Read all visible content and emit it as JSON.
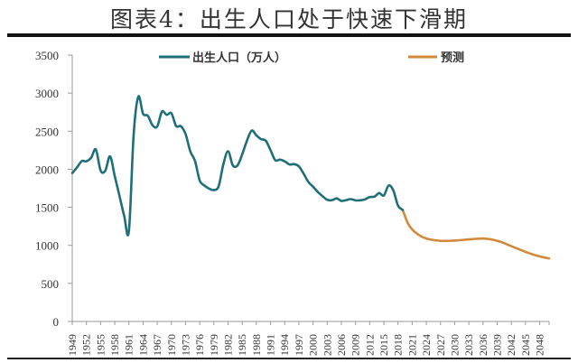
{
  "header": {
    "title": "图表4：出生人口处于快速下滑期"
  },
  "legend": {
    "actual_label": "出生人口（万人）",
    "forecast_label": "预测"
  },
  "colors": {
    "actual": "#1f6f78",
    "forecast": "#d08a3a",
    "axis": "#999999",
    "text": "#333333"
  },
  "chart_data": {
    "type": "line",
    "title": "图表4：出生人口处于快速下滑期",
    "xlabel": "",
    "ylabel": "",
    "ylim": [
      0,
      3500
    ],
    "yticks": [
      0,
      500,
      1000,
      1500,
      2000,
      2500,
      3000,
      3500
    ],
    "xlim": [
      1949,
      2050
    ],
    "xtick_labels": [
      "1949",
      "1952",
      "1955",
      "1958",
      "1961",
      "1964",
      "1967",
      "1970",
      "1973",
      "1976",
      "1979",
      "1982",
      "1985",
      "1988",
      "1991",
      "1994",
      "1997",
      "2000",
      "2003",
      "2006",
      "2009",
      "2012",
      "2015",
      "2018",
      "2021",
      "2024",
      "2027",
      "2030",
      "2033",
      "2036",
      "2039",
      "2042",
      "2045",
      "2048"
    ],
    "grid": false,
    "legend_position": "top",
    "series": [
      {
        "name": "出生人口（万人）",
        "x": [
          1949,
          1950,
          1951,
          1952,
          1953,
          1954,
          1955,
          1956,
          1957,
          1958,
          1959,
          1960,
          1961,
          1962,
          1963,
          1964,
          1965,
          1966,
          1967,
          1968,
          1969,
          1970,
          1971,
          1972,
          1973,
          1974,
          1975,
          1976,
          1977,
          1978,
          1979,
          1980,
          1981,
          1982,
          1983,
          1984,
          1985,
          1986,
          1987,
          1988,
          1989,
          1990,
          1991,
          1992,
          1993,
          1994,
          1995,
          1996,
          1997,
          1998,
          1999,
          2000,
          2001,
          2002,
          2003,
          2004,
          2005,
          2006,
          2007,
          2008,
          2009,
          2010,
          2011,
          2012,
          2013,
          2014,
          2015,
          2016,
          2017,
          2018,
          2019
        ],
        "values": [
          1950,
          2023,
          2107,
          2105,
          2151,
          2260,
          1984,
          1980,
          2169,
          1912,
          1650,
          1389,
          1187,
          2451,
          2954,
          2729,
          2704,
          2577,
          2563,
          2757,
          2715,
          2736,
          2567,
          2566,
          2463,
          2235,
          2109,
          1853,
          1786,
          1745,
          1727,
          1776,
          2064,
          2237,
          2052,
          2050,
          2196,
          2374,
          2508,
          2445,
          2396,
          2374,
          2250,
          2119,
          2126,
          2104,
          2063,
          2067,
          2038,
          1942,
          1834,
          1771,
          1702,
          1647,
          1599,
          1593,
          1617,
          1584,
          1594,
          1608,
          1591,
          1592,
          1604,
          1635,
          1640,
          1687,
          1655,
          1786,
          1723,
          1523,
          1465
        ]
      },
      {
        "name": "预测",
        "x": [
          2019,
          2020,
          2021,
          2022,
          2023,
          2024,
          2025,
          2026,
          2027,
          2028,
          2029,
          2030,
          2031,
          2032,
          2033,
          2034,
          2035,
          2036,
          2037,
          2038,
          2039,
          2040,
          2041,
          2042,
          2043,
          2044,
          2045,
          2046,
          2047,
          2048,
          2049,
          2050
        ],
        "values": [
          1465,
          1300,
          1210,
          1155,
          1115,
          1090,
          1075,
          1065,
          1060,
          1058,
          1060,
          1063,
          1068,
          1073,
          1078,
          1083,
          1088,
          1090,
          1085,
          1075,
          1060,
          1040,
          1015,
          990,
          965,
          940,
          915,
          892,
          872,
          855,
          840,
          828
        ]
      }
    ]
  }
}
